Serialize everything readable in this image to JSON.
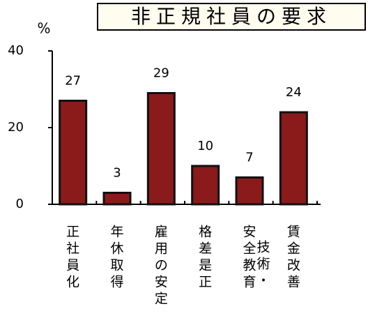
{
  "chart_data": {
    "type": "bar",
    "title": "非正規社員の要求",
    "y_label": "%",
    "categories": [
      "正社員化",
      "年休取得",
      "雇用の安定",
      "格差是正",
      "安全教育 技術・",
      "賃金改善"
    ],
    "values": [
      27,
      3,
      29,
      10,
      7,
      24
    ],
    "color": "#8b1a1a",
    "ylim": [
      0,
      40
    ],
    "yticks": [
      0,
      20,
      40
    ]
  }
}
